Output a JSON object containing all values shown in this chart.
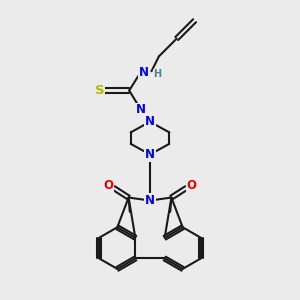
{
  "bg": "#ebebeb",
  "bond_color": "#1a1a1a",
  "N_color": "#0000ee",
  "O_color": "#ee0000",
  "S_color": "#b8b800",
  "H_color": "#408888",
  "lw": 1.5,
  "fs": 8.5,
  "figsize": [
    3.0,
    3.0
  ],
  "dpi": 100,
  "xlim": [
    0,
    10
  ],
  "ylim": [
    0,
    10
  ]
}
